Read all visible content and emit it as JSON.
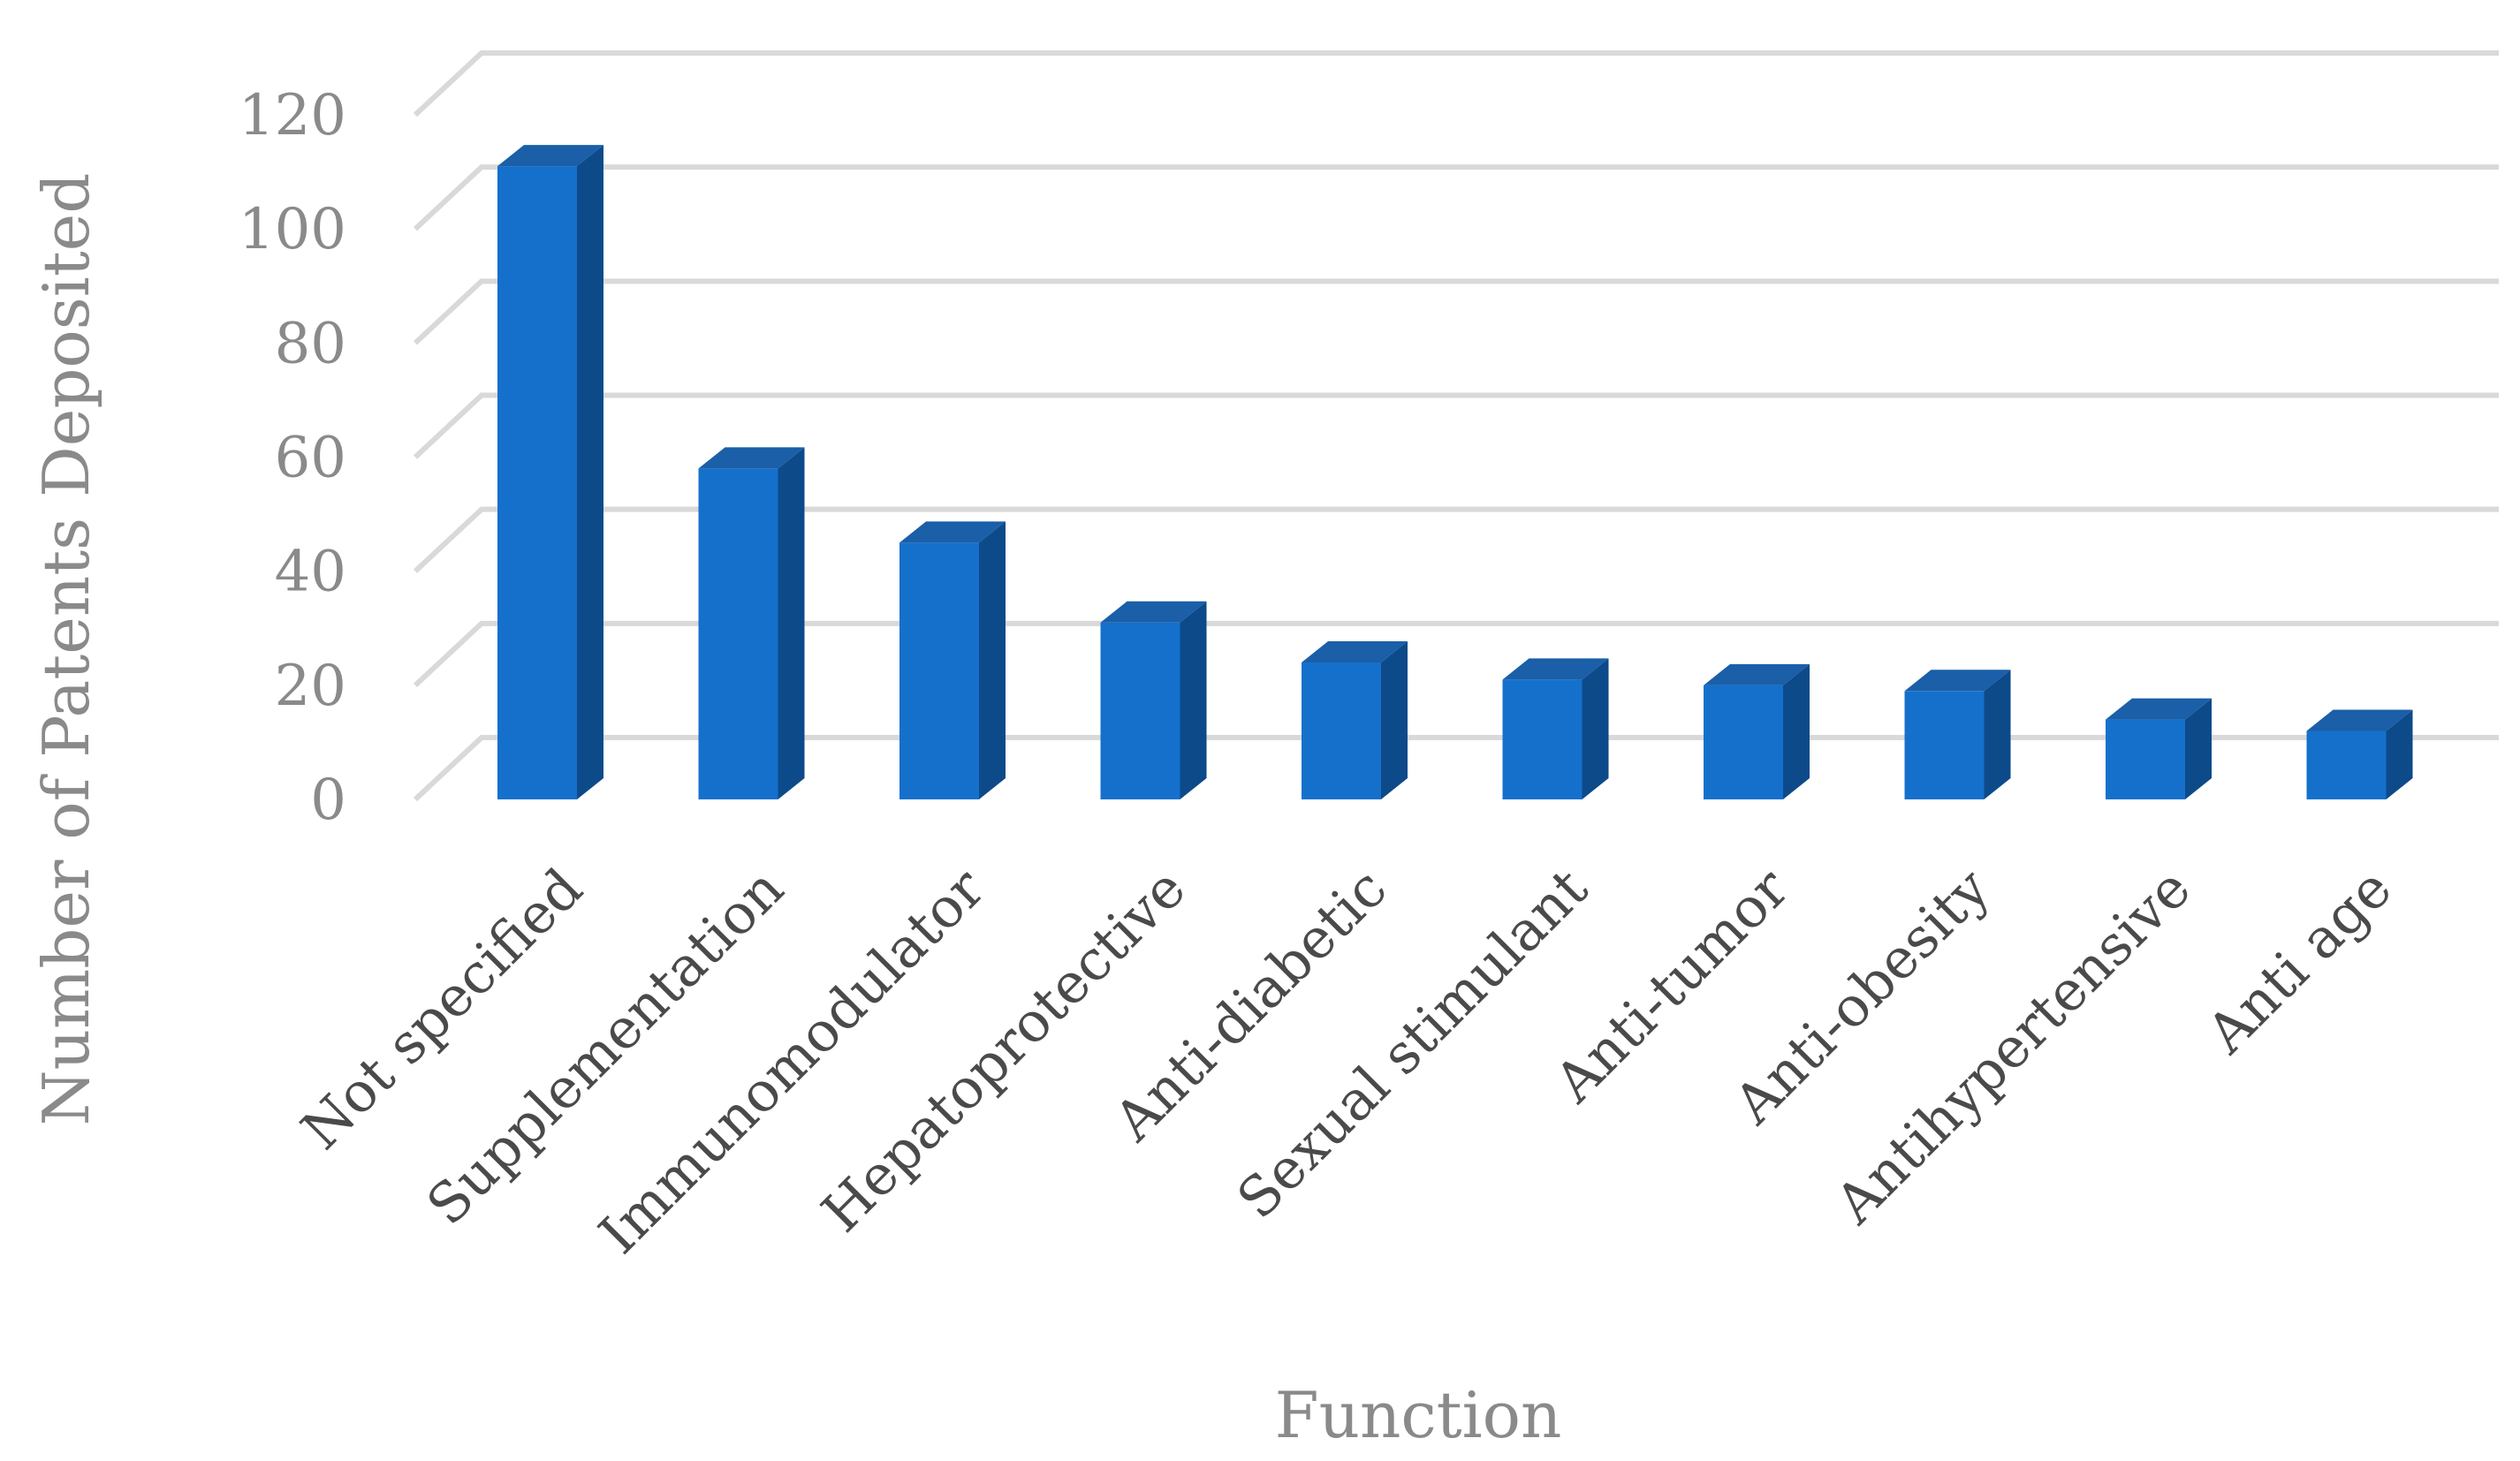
{
  "chart_data": {
    "type": "bar",
    "style": "3d-column",
    "categories": [
      "Not specified",
      "Supplementation",
      "Immunomodulator",
      "Hepatoprotective",
      "Anti-diabetic",
      "Sexual stimulant",
      "Anti-tumor",
      "Anti-obesity",
      "Antihypertensive",
      "Anti age"
    ],
    "values": [
      111,
      58,
      45,
      31,
      24,
      21,
      20,
      19,
      14,
      12
    ],
    "xlabel": "Function",
    "ylabel": "Number of Patents Deposited",
    "ylim": [
      0,
      120
    ],
    "yticks": [
      0,
      20,
      40,
      60,
      80,
      100,
      120
    ],
    "grid": true,
    "legend": "none",
    "colors": {
      "bar_front": "#1570cc",
      "bar_side": "#0d4a8a",
      "bar_top": "#1a5fa8",
      "grid": "#d9d9d9"
    }
  }
}
